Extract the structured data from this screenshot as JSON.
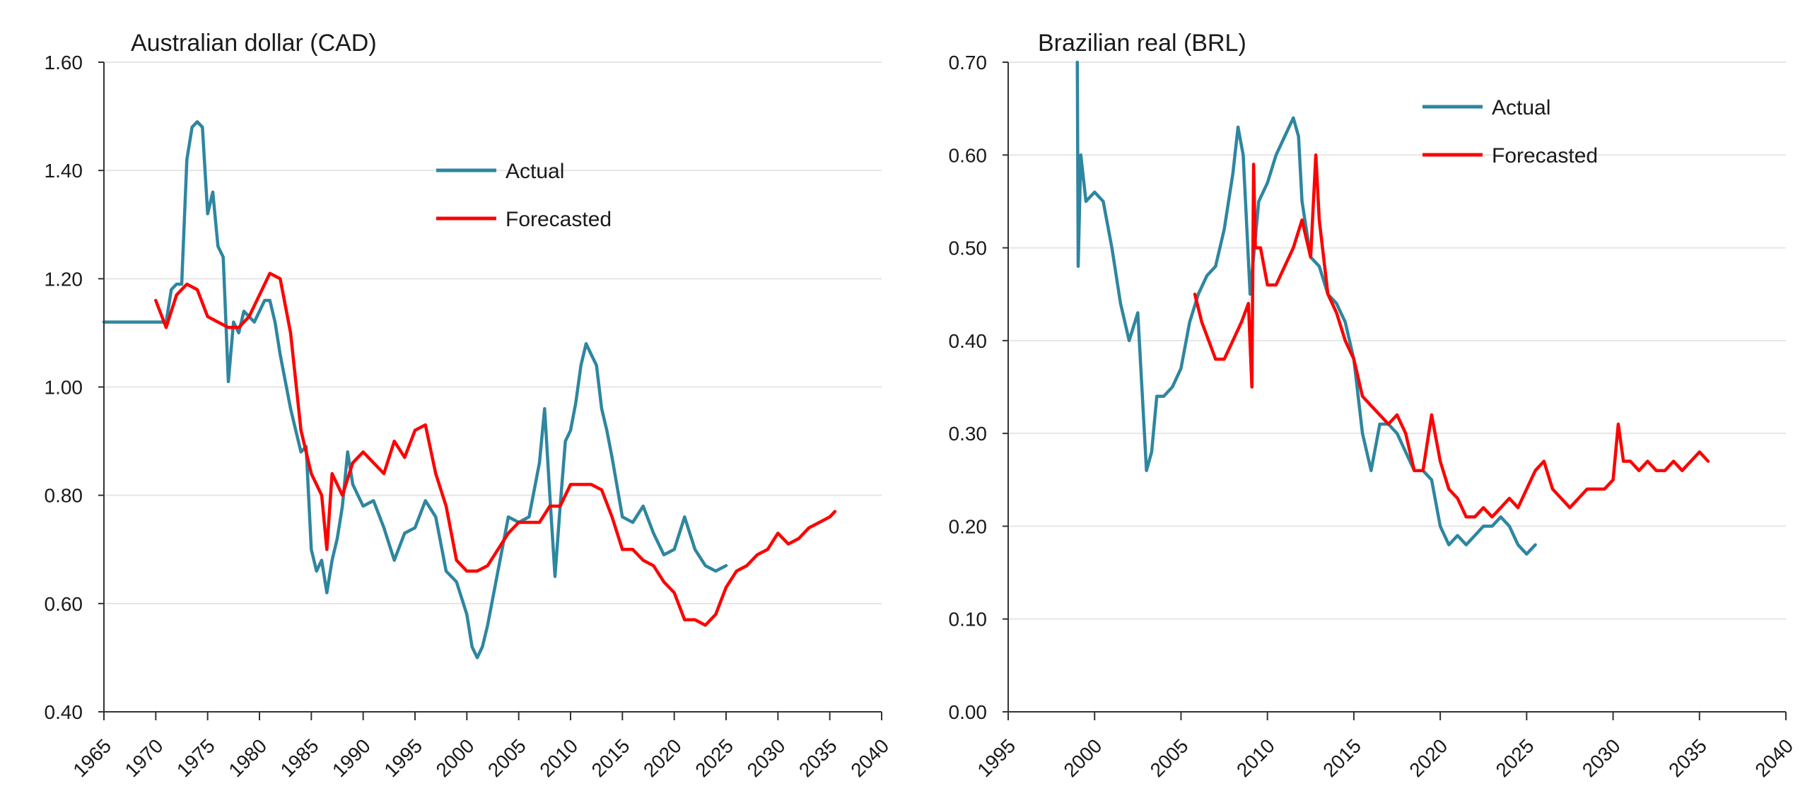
{
  "colors": {
    "actual": "#2E86A0",
    "forecast": "#FF0000",
    "grid": "#E6E6E6",
    "axis": "#333333"
  },
  "chart_data": [
    {
      "type": "line",
      "title": "Australian dollar (CAD)",
      "xlabel": "",
      "ylabel": "",
      "xlim": [
        1965,
        2040
      ],
      "ylim": [
        0.4,
        1.6
      ],
      "x_ticks": [
        "1965",
        "1970",
        "1975",
        "1980",
        "1985",
        "1990",
        "1995",
        "2000",
        "2005",
        "2010",
        "2015",
        "2020",
        "2025",
        "2030",
        "2035",
        "2040"
      ],
      "y_ticks": [
        "0.40",
        "0.60",
        "0.80",
        "1.00",
        "1.20",
        "1.40",
        "1.60"
      ],
      "grid": true,
      "legend_position": "upper-center",
      "series": [
        {
          "name": "Actual",
          "x": [
            1965,
            1966,
            1967,
            1968,
            1969,
            1970,
            1971,
            1971.5,
            1972,
            1972.5,
            1973,
            1973.5,
            1974,
            1974.5,
            1975,
            1975.5,
            1976,
            1976.5,
            1977,
            1977.5,
            1978,
            1978.5,
            1979,
            1979.5,
            1980,
            1980.5,
            1981,
            1981.5,
            1982,
            1983,
            1983.5,
            1984,
            1984.5,
            1985,
            1985.5,
            1986,
            1986.5,
            1987,
            1987.5,
            1988,
            1988.5,
            1989,
            1989.5,
            1990,
            1991,
            1992,
            1993,
            1994,
            1995,
            1996,
            1997,
            1998,
            1999,
            2000,
            2000.5,
            2001,
            2001.5,
            2002,
            2003,
            2004,
            2005,
            2006,
            2007,
            2007.5,
            2008,
            2008.5,
            2009,
            2009.5,
            2010,
            2010.5,
            2011,
            2011.5,
            2012,
            2012.5,
            2013,
            2013.5,
            2014,
            2015,
            2016,
            2017,
            2018,
            2019,
            2020,
            2021,
            2022,
            2023,
            2024,
            2025
          ],
          "y": [
            1.12,
            1.12,
            1.12,
            1.12,
            1.12,
            1.12,
            1.12,
            1.18,
            1.19,
            1.19,
            1.42,
            1.48,
            1.49,
            1.48,
            1.32,
            1.36,
            1.26,
            1.24,
            1.01,
            1.12,
            1.1,
            1.14,
            1.13,
            1.12,
            1.14,
            1.16,
            1.16,
            1.12,
            1.06,
            0.96,
            0.92,
            0.88,
            0.89,
            0.7,
            0.66,
            0.68,
            0.62,
            0.68,
            0.72,
            0.78,
            0.88,
            0.82,
            0.8,
            0.78,
            0.79,
            0.74,
            0.68,
            0.73,
            0.74,
            0.79,
            0.76,
            0.66,
            0.64,
            0.58,
            0.52,
            0.5,
            0.52,
            0.56,
            0.66,
            0.76,
            0.75,
            0.76,
            0.86,
            0.96,
            0.8,
            0.65,
            0.78,
            0.9,
            0.92,
            0.97,
            1.04,
            1.08,
            1.06,
            1.04,
            0.96,
            0.92,
            0.87,
            0.76,
            0.75,
            0.78,
            0.73,
            0.69,
            0.7,
            0.76,
            0.7,
            0.67,
            0.66,
            0.67
          ]
        },
        {
          "name": "Forecasted",
          "x": [
            1970,
            1971,
            1972,
            1973,
            1974,
            1975,
            1976,
            1977,
            1978,
            1979,
            1980,
            1981,
            1982,
            1983,
            1984,
            1985,
            1986,
            1986.5,
            1987,
            1988,
            1989,
            1990,
            1991,
            1992,
            1993,
            1994,
            1995,
            1996,
            1997,
            1998,
            1999,
            2000,
            2001,
            2002,
            2003,
            2004,
            2005,
            2006,
            2007,
            2008,
            2009,
            2010,
            2011,
            2012,
            2013,
            2014,
            2015,
            2016,
            2017,
            2018,
            2019,
            2020,
            2021,
            2022,
            2023,
            2024,
            2025,
            2026,
            2027,
            2028,
            2029,
            2030,
            2031,
            2032,
            2033,
            2034,
            2035,
            2035.5
          ],
          "y": [
            1.16,
            1.11,
            1.17,
            1.19,
            1.18,
            1.13,
            1.12,
            1.11,
            1.11,
            1.13,
            1.17,
            1.21,
            1.2,
            1.1,
            0.92,
            0.84,
            0.8,
            0.7,
            0.84,
            0.8,
            0.86,
            0.88,
            0.86,
            0.84,
            0.9,
            0.87,
            0.92,
            0.93,
            0.84,
            0.78,
            0.68,
            0.66,
            0.66,
            0.67,
            0.7,
            0.73,
            0.75,
            0.75,
            0.75,
            0.78,
            0.78,
            0.82,
            0.82,
            0.82,
            0.81,
            0.76,
            0.7,
            0.7,
            0.68,
            0.67,
            0.64,
            0.62,
            0.57,
            0.57,
            0.56,
            0.58,
            0.63,
            0.66,
            0.67,
            0.69,
            0.7,
            0.73,
            0.71,
            0.72,
            0.74,
            0.75,
            0.76,
            0.77
          ]
        }
      ]
    },
    {
      "type": "line",
      "title": "Brazilian real (BRL)",
      "xlabel": "",
      "ylabel": "",
      "xlim": [
        1995,
        2040
      ],
      "ylim": [
        0.0,
        0.7
      ],
      "x_ticks": [
        "1995",
        "2000",
        "2005",
        "2010",
        "2015",
        "2020",
        "2025",
        "2030",
        "2035",
        "2040"
      ],
      "y_ticks": [
        "0.00",
        "0.10",
        "0.20",
        "0.30",
        "0.40",
        "0.50",
        "0.60",
        "0.70"
      ],
      "grid": true,
      "legend_position": "top-right",
      "series": [
        {
          "name": "Actual",
          "x": [
            1999,
            1999.05,
            1999.2,
            1999.5,
            2000,
            2000.5,
            2001,
            2001.5,
            2002,
            2002.5,
            2003,
            2003.3,
            2003.6,
            2004,
            2004.5,
            2005,
            2005.5,
            2006,
            2006.5,
            2007,
            2007.5,
            2008,
            2008.3,
            2008.6,
            2009,
            2009.5,
            2010,
            2010.5,
            2011,
            2011.5,
            2011.8,
            2012,
            2012.5,
            2013,
            2013.5,
            2014,
            2014.5,
            2015,
            2015.5,
            2016,
            2016.5,
            2017,
            2017.5,
            2018,
            2018.5,
            2019,
            2019.5,
            2020,
            2020.5,
            2021,
            2021.5,
            2022,
            2022.5,
            2023,
            2023.5,
            2024,
            2024.5,
            2025,
            2025.5
          ],
          "y": [
            0.7,
            0.48,
            0.6,
            0.55,
            0.56,
            0.55,
            0.5,
            0.44,
            0.4,
            0.43,
            0.26,
            0.28,
            0.34,
            0.34,
            0.35,
            0.37,
            0.42,
            0.45,
            0.47,
            0.48,
            0.52,
            0.58,
            0.63,
            0.6,
            0.45,
            0.55,
            0.57,
            0.6,
            0.62,
            0.64,
            0.62,
            0.55,
            0.49,
            0.48,
            0.45,
            0.44,
            0.42,
            0.38,
            0.3,
            0.26,
            0.31,
            0.31,
            0.3,
            0.28,
            0.26,
            0.26,
            0.25,
            0.2,
            0.18,
            0.19,
            0.18,
            0.19,
            0.2,
            0.2,
            0.21,
            0.2,
            0.18,
            0.17,
            0.18
          ]
        },
        {
          "name": "Forecasted",
          "x": [
            2005.8,
            2006.2,
            2006.6,
            2007,
            2007.5,
            2008,
            2008.5,
            2008.9,
            2009.1,
            2009.2,
            2009.3,
            2009.6,
            2010,
            2010.5,
            2011,
            2011.5,
            2012,
            2012.5,
            2012.8,
            2013,
            2013.5,
            2014,
            2014.5,
            2015,
            2015.5,
            2016,
            2016.5,
            2017,
            2017.5,
            2018,
            2018.5,
            2019,
            2019.5,
            2020,
            2020.5,
            2021,
            2021.5,
            2022,
            2022.5,
            2023,
            2023.5,
            2024,
            2024.5,
            2025,
            2025.5,
            2026,
            2026.5,
            2027,
            2027.5,
            2028,
            2028.5,
            2029,
            2029.5,
            2030,
            2030.3,
            2030.6,
            2031,
            2031.5,
            2032,
            2032.5,
            2033,
            2033.5,
            2034,
            2034.5,
            2035,
            2035.5
          ],
          "y": [
            0.45,
            0.42,
            0.4,
            0.38,
            0.38,
            0.4,
            0.42,
            0.44,
            0.35,
            0.59,
            0.5,
            0.5,
            0.46,
            0.46,
            0.48,
            0.5,
            0.53,
            0.49,
            0.6,
            0.53,
            0.45,
            0.43,
            0.4,
            0.38,
            0.34,
            0.33,
            0.32,
            0.31,
            0.32,
            0.3,
            0.26,
            0.26,
            0.32,
            0.27,
            0.24,
            0.23,
            0.21,
            0.21,
            0.22,
            0.21,
            0.22,
            0.23,
            0.22,
            0.24,
            0.26,
            0.27,
            0.24,
            0.23,
            0.22,
            0.23,
            0.24,
            0.24,
            0.24,
            0.25,
            0.31,
            0.27,
            0.27,
            0.26,
            0.27,
            0.26,
            0.26,
            0.27,
            0.26,
            0.27,
            0.28,
            0.27
          ]
        }
      ]
    }
  ]
}
